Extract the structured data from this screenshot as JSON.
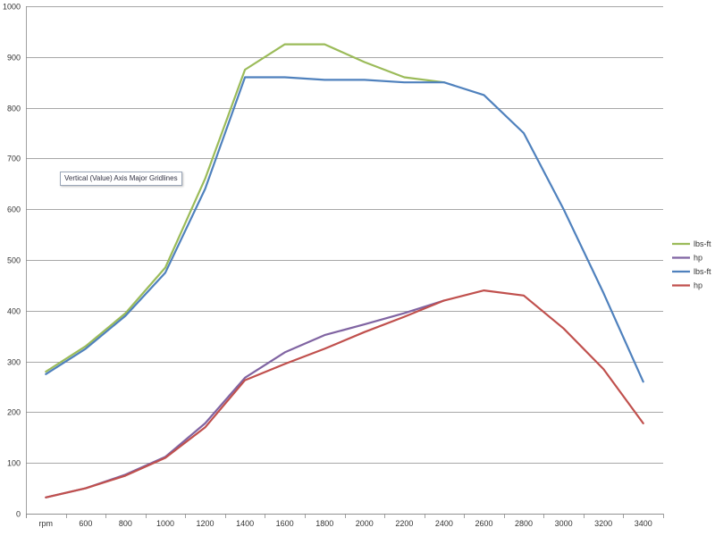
{
  "chart_data": {
    "type": "line",
    "categories": [
      "rpm",
      "600",
      "800",
      "1000",
      "1200",
      "1400",
      "1600",
      "1800",
      "2000",
      "2200",
      "2400",
      "2600",
      "2800",
      "3000",
      "3200",
      "3400"
    ],
    "ylim": [
      0,
      1000
    ],
    "yticks": [
      0,
      100,
      200,
      300,
      400,
      500,
      600,
      700,
      800,
      900,
      1000
    ],
    "grid": "horizontal",
    "legend_position": "right",
    "series": [
      {
        "name": "lbs-ft",
        "color": "#9bbb59",
        "values": [
          280,
          330,
          395,
          485,
          660,
          875,
          925,
          925,
          890,
          860,
          850,
          null,
          null,
          null,
          null,
          null
        ]
      },
      {
        "name": "hp",
        "color": "#8064a2",
        "values": [
          32,
          50,
          77,
          112,
          178,
          268,
          318,
          352,
          373,
          395,
          420,
          null,
          null,
          null,
          null,
          null
        ]
      },
      {
        "name": "lbs-ft",
        "color": "#4f81bd",
        "values": [
          275,
          325,
          390,
          475,
          640,
          860,
          860,
          855,
          855,
          850,
          850,
          825,
          750,
          600,
          435,
          260
        ]
      },
      {
        "name": "hp",
        "color": "#c0504d",
        "values": [
          32,
          50,
          75,
          110,
          170,
          263,
          295,
          325,
          358,
          388,
          420,
          440,
          430,
          365,
          285,
          178
        ]
      }
    ]
  },
  "tooltip": {
    "text": "Vertical (Value) Axis Major Gridlines"
  }
}
